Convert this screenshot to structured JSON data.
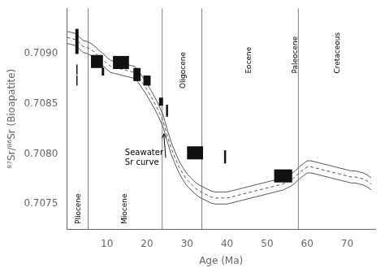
{
  "chart_data": {
    "type": "line",
    "xlabel": "Age (Ma)",
    "ylabel": "⁸⁷Sr/⁸⁶Sr (Bioapatite)",
    "xlim": [
      0,
      77
    ],
    "ylim": [
      0.70725,
      0.70945
    ],
    "xticks": [
      10,
      20,
      30,
      40,
      50,
      60,
      70
    ],
    "yticks": [
      {
        "value": 0.7075,
        "label": "0.7075"
      },
      {
        "value": 0.708,
        "label": "0.7080"
      },
      {
        "value": 0.7085,
        "label": "0.7085"
      },
      {
        "value": 0.709,
        "label": "0.7090"
      }
    ],
    "grid": false,
    "x": [
      0,
      1,
      2,
      3,
      4,
      5,
      6,
      7,
      8,
      9,
      10,
      11,
      12,
      13,
      14,
      15,
      16,
      17,
      18,
      19,
      20,
      21,
      22,
      23,
      24,
      25,
      26,
      27,
      28,
      29,
      30,
      31,
      32,
      33,
      34,
      35,
      36,
      37,
      38,
      39,
      40,
      41,
      42,
      43,
      44,
      45,
      46,
      47,
      48,
      49,
      50,
      51,
      52,
      53,
      54,
      55,
      56,
      57,
      58,
      59,
      60,
      61,
      62,
      63,
      64,
      65,
      66,
      67,
      68,
      69,
      70,
      71,
      72,
      73,
      74,
      75,
      76
    ],
    "series": [
      {
        "type": "line",
        "color": "#555555",
        "line_style": "solid",
        "values": [
          0.70922,
          0.70921,
          0.7092,
          0.70917,
          0.70913,
          0.70912,
          0.7091,
          0.70907,
          0.70903,
          0.709,
          0.70896,
          0.70893,
          0.70892,
          0.70891,
          0.7089,
          0.70889,
          0.70888,
          0.70887,
          0.70882,
          0.70876,
          0.7087,
          0.70863,
          0.70856,
          0.70848,
          0.70839,
          0.70825,
          0.70812,
          0.70802,
          0.70793,
          0.70786,
          0.7078,
          0.70776,
          0.70772,
          0.70769,
          0.70767,
          0.70765,
          0.70763,
          0.70762,
          0.70762,
          0.70762,
          0.70762,
          0.70763,
          0.70764,
          0.70765,
          0.70766,
          0.70767,
          0.70768,
          0.70769,
          0.7077,
          0.70771,
          0.70772,
          0.70773,
          0.70774,
          0.70775,
          0.70776,
          0.70778,
          0.7078,
          0.70783,
          0.70787,
          0.7079,
          0.70793,
          0.70793,
          0.70792,
          0.70791,
          0.7079,
          0.70789,
          0.70788,
          0.70787,
          0.70786,
          0.70785,
          0.70784,
          0.70783,
          0.70783,
          0.70782,
          0.70781,
          0.70779,
          0.70776
        ]
      },
      {
        "type": "line",
        "color": "#555555",
        "line_style": "solid",
        "values": [
          0.7091,
          0.70909,
          0.70908,
          0.70905,
          0.70901,
          0.709,
          0.70898,
          0.70895,
          0.70891,
          0.70888,
          0.70884,
          0.70881,
          0.7088,
          0.70879,
          0.70878,
          0.70877,
          0.70876,
          0.70875,
          0.7087,
          0.70864,
          0.70858,
          0.70851,
          0.70844,
          0.70836,
          0.70827,
          0.70813,
          0.708,
          0.7079,
          0.70781,
          0.70774,
          0.70768,
          0.70764,
          0.7076,
          0.70757,
          0.70755,
          0.70753,
          0.70751,
          0.7075,
          0.7075,
          0.7075,
          0.7075,
          0.70751,
          0.70752,
          0.70753,
          0.70754,
          0.70755,
          0.70756,
          0.70757,
          0.70758,
          0.70759,
          0.7076,
          0.70761,
          0.70762,
          0.70763,
          0.70764,
          0.70766,
          0.70768,
          0.70771,
          0.70775,
          0.70778,
          0.70781,
          0.70781,
          0.7078,
          0.70779,
          0.70778,
          0.70777,
          0.70776,
          0.70775,
          0.70774,
          0.70773,
          0.70772,
          0.70771,
          0.70771,
          0.7077,
          0.70769,
          0.70767,
          0.70764
        ]
      },
      {
        "type": "line",
        "color": "#555555",
        "line_style": "dashed",
        "values": [
          0.70916,
          0.70915,
          0.70914,
          0.70911,
          0.70907,
          0.70906,
          0.70904,
          0.70901,
          0.70897,
          0.70894,
          0.7089,
          0.70887,
          0.70886,
          0.70885,
          0.70884,
          0.70883,
          0.70882,
          0.70881,
          0.70876,
          0.7087,
          0.70864,
          0.70857,
          0.7085,
          0.70842,
          0.70833,
          0.70819,
          0.70806,
          0.70796,
          0.70787,
          0.7078,
          0.70774,
          0.7077,
          0.70766,
          0.70763,
          0.70761,
          0.70759,
          0.70757,
          0.70756,
          0.70756,
          0.70756,
          0.70756,
          0.70757,
          0.70758,
          0.70759,
          0.7076,
          0.70761,
          0.70762,
          0.70763,
          0.70764,
          0.70765,
          0.70766,
          0.70767,
          0.70768,
          0.70769,
          0.7077,
          0.70772,
          0.70774,
          0.70777,
          0.70781,
          0.70784,
          0.70787,
          0.70787,
          0.70786,
          0.70785,
          0.70784,
          0.70783,
          0.70782,
          0.70781,
          0.7078,
          0.70779,
          0.70778,
          0.70777,
          0.70777,
          0.70776,
          0.70775,
          0.70773,
          0.7077
        ]
      },
      {
        "type": "box",
        "color": "#111111",
        "boxes": [
          {
            "x_center": 2.5,
            "y_center": 0.70912,
            "width": 0.8,
            "height": 0.00025
          },
          {
            "x_center": 2.5,
            "y_center": 0.70884,
            "width": 0.3,
            "height": 0.0001
          },
          {
            "x_center": 2.5,
            "y_center": 0.70873,
            "width": 0.3,
            "height": 0.0001
          },
          {
            "x_center": 7.5,
            "y_center": 0.70892,
            "width": 3.0,
            "height": 0.00013
          },
          {
            "x_center": 9.0,
            "y_center": 0.70882,
            "width": 0.6,
            "height": 8e-05
          },
          {
            "x_center": 13.5,
            "y_center": 0.70891,
            "width": 4.0,
            "height": 0.00013
          },
          {
            "x_center": 17.5,
            "y_center": 0.70879,
            "width": 1.8,
            "height": 0.00013
          },
          {
            "x_center": 20.0,
            "y_center": 0.70873,
            "width": 1.8,
            "height": 0.0001
          },
          {
            "x_center": 23.5,
            "y_center": 0.70852,
            "width": 1.0,
            "height": 8e-05
          },
          {
            "x_center": 25.0,
            "y_center": 0.70843,
            "width": 0.5,
            "height": 0.00012
          },
          {
            "x_center": 32.0,
            "y_center": 0.70801,
            "width": 4.0,
            "height": 0.00013
          },
          {
            "x_center": 39.5,
            "y_center": 0.70797,
            "width": 0.5,
            "height": 0.00013
          },
          {
            "x_center": 54.0,
            "y_center": 0.70778,
            "width": 4.5,
            "height": 0.00013
          }
        ]
      }
    ],
    "vlines": {
      "color": "gray",
      "x": [
        5.3,
        23.8,
        33.7,
        57.8
      ]
    },
    "epoch_labels": [
      {
        "x": 2.8,
        "y": 0.7073,
        "text": "Pliocene"
      },
      {
        "x": 14.5,
        "y": 0.7073,
        "text": "Miocene"
      },
      {
        "x": 29.0,
        "y": 0.70865,
        "text": "Oligocene"
      },
      {
        "x": 45.5,
        "y": 0.7088,
        "text": "Eocene"
      },
      {
        "x": 57.0,
        "y": 0.7088,
        "text": "Paleocene"
      },
      {
        "x": 67.5,
        "y": 0.7088,
        "text": "Cretaceous"
      }
    ],
    "annotations": [
      {
        "text": "Seawater\nSr curve",
        "x": 14.5,
        "y": 0.70796,
        "arrow_to": [
          24.2,
          0.7082
        ]
      }
    ]
  }
}
